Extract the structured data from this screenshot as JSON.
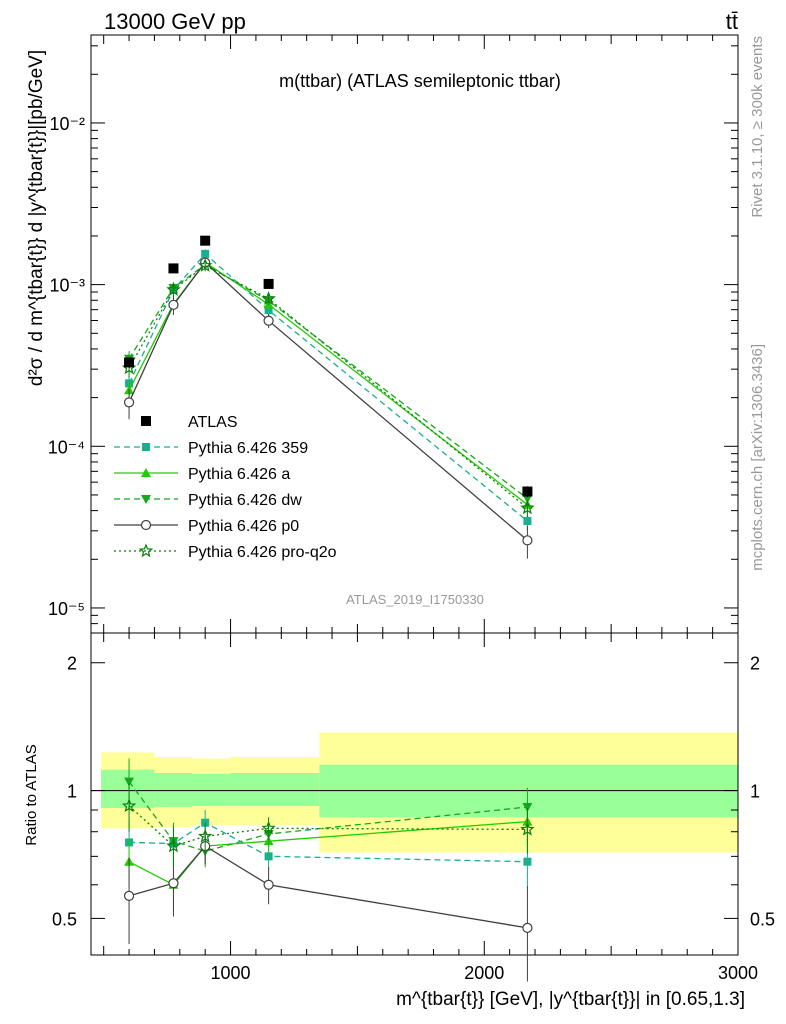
{
  "header": {
    "energy_label": "13000 GeV pp",
    "process_label": "tt̄"
  },
  "side_labels": {
    "rivet": "Rivet 3.1.10, ≥ 300k events",
    "mcplots": "mcplots.cern.ch [arXiv:1306.3436]"
  },
  "analysis_id": "ATLAS_2019_I1750330",
  "colors": {
    "atlas": "#000000",
    "p359": "#1aaf8f",
    "pa": "#22cc00",
    "pdw": "#14a81a",
    "pp0": "#404040",
    "pq2o": "#0a7f0a",
    "band_outer": "#ffff99",
    "band_inner": "#99ff99"
  },
  "chart_data": [
    {
      "type": "line",
      "title": "m(ttbar) (ATLAS semileptonic ttbar)",
      "ylabel": "d²σ / d m^{tbar{t}} d |y^{tbar{t}}|[pb/GeV]",
      "xlim": [
        450,
        3000
      ],
      "ylim": [
        7e-06,
        0.035
      ],
      "yscale": "log",
      "y_ticks": [
        {
          "value": 1e-05,
          "label": "10⁻⁵"
        },
        {
          "value": 0.0001,
          "label": "10⁻⁴"
        },
        {
          "value": 0.001,
          "label": "10⁻³"
        },
        {
          "value": 0.01,
          "label": "10⁻²"
        }
      ],
      "x": [
        600,
        775,
        900,
        1150,
        2170
      ],
      "data_label": "ATLAS",
      "data": [
        0.00033,
        0.00126,
        0.00187,
        0.00101,
        5.25e-05
      ],
      "data_err": [
        2e-05,
        5e-05,
        7e-05,
        4e-05,
        4e-06
      ],
      "series": [
        {
          "name": "Pythia 6.426 359",
          "key": "p359",
          "marker": "square",
          "dash": "6,4",
          "values": [
            0.000245,
            0.00093,
            0.00155,
            0.000695,
            3.45e-05
          ],
          "err": [
            3e-05,
            8e-05,
            0.0001,
            5e-05,
            4e-06
          ]
        },
        {
          "name": "Pythia 6.426 a",
          "key": "pa",
          "marker": "triangle-up",
          "dash": "",
          "values": [
            0.000222,
            0.00076,
            0.00137,
            0.000755,
            4.35e-05
          ],
          "err": [
            3e-05,
            7e-05,
            0.0001,
            5e-05,
            5e-06
          ]
        },
        {
          "name": "Pythia 6.426 dw",
          "key": "pdw",
          "marker": "triangle-down",
          "dash": "6,4",
          "values": [
            0.000348,
            0.000955,
            0.00133,
            0.000795,
            4.75e-05
          ],
          "err": [
            4e-05,
            8e-05,
            0.0001,
            5e-05,
            5e-06
          ]
        },
        {
          "name": "Pythia 6.426 p0",
          "key": "pp0",
          "marker": "circle-open",
          "dash": "",
          "values": [
            0.000187,
            0.00075,
            0.00137,
            0.000598,
            2.62e-05
          ],
          "err": [
            4e-05,
            0.0001,
            0.0001,
            6e-05,
            6e-06
          ]
        },
        {
          "name": "Pythia 6.426 pro-q2o",
          "key": "pq2o",
          "marker": "star-open",
          "dash": "2,3",
          "values": [
            0.000305,
            0.00093,
            0.00131,
            0.000818,
            4.15e-05
          ],
          "err": [
            4e-05,
            8e-05,
            0.0001,
            5e-05,
            5e-06
          ]
        }
      ]
    },
    {
      "type": "line",
      "ylabel": "Ratio to ATLAS",
      "xlabel": "m^{tbar{t}} [GeV], |y^{tbar{t}}| in [0.65,1.3]",
      "xlim": [
        450,
        3000
      ],
      "ylim": [
        0.41,
        2.35
      ],
      "yscale": "log",
      "y_ticks": [
        {
          "value": 0.5,
          "label": "0.5"
        },
        {
          "value": 1,
          "label": "1"
        },
        {
          "value": 2,
          "label": "2"
        }
      ],
      "x_ticks": [
        {
          "value": 1000,
          "label": "1000"
        },
        {
          "value": 2000,
          "label": "2000"
        },
        {
          "value": 3000,
          "label": "3000"
        }
      ],
      "bands": [
        {
          "x0": 490,
          "x1": 700,
          "outer": [
            0.815,
            1.23
          ],
          "inner": [
            0.91,
            1.12
          ]
        },
        {
          "x0": 700,
          "x1": 850,
          "outer": [
            0.82,
            1.2
          ],
          "inner": [
            0.915,
            1.1
          ]
        },
        {
          "x0": 850,
          "x1": 1000,
          "outer": [
            0.83,
            1.19
          ],
          "inner": [
            0.92,
            1.095
          ]
        },
        {
          "x0": 1000,
          "x1": 1350,
          "outer": [
            0.83,
            1.2
          ],
          "inner": [
            0.92,
            1.1
          ]
        },
        {
          "x0": 1350,
          "x1": 3000,
          "outer": [
            0.715,
            1.37
          ],
          "inner": [
            0.865,
            1.15
          ]
        }
      ],
      "x": [
        600,
        775,
        900,
        1150,
        2170
      ],
      "series": [
        {
          "name": "Pythia 6.426 359",
          "key": "p359",
          "values": [
            0.755,
            0.75,
            0.84,
            0.7,
            0.68
          ],
          "err": [
            0.09,
            0.08,
            0.06,
            0.05,
            0.09
          ]
        },
        {
          "name": "Pythia 6.426 a",
          "key": "pa",
          "values": [
            0.68,
            0.6,
            0.74,
            0.76,
            0.845
          ],
          "err": [
            0.09,
            0.08,
            0.06,
            0.05,
            0.1
          ]
        },
        {
          "name": "Pythia 6.426 dw",
          "key": "pdw",
          "values": [
            1.05,
            0.76,
            0.72,
            0.79,
            0.915
          ],
          "err": [
            0.14,
            0.08,
            0.06,
            0.05,
            0.1
          ]
        },
        {
          "name": "Pythia 6.426 p0",
          "key": "pp0",
          "values": [
            0.565,
            0.605,
            0.74,
            0.6,
            0.475
          ],
          "err": [
            0.13,
            0.1,
            0.07,
            0.06,
            0.12
          ]
        },
        {
          "name": "Pythia 6.426 pro-q2o",
          "key": "pq2o",
          "values": [
            0.92,
            0.74,
            0.78,
            0.815,
            0.81
          ],
          "err": [
            0.12,
            0.08,
            0.06,
            0.05,
            0.1
          ]
        }
      ]
    }
  ]
}
